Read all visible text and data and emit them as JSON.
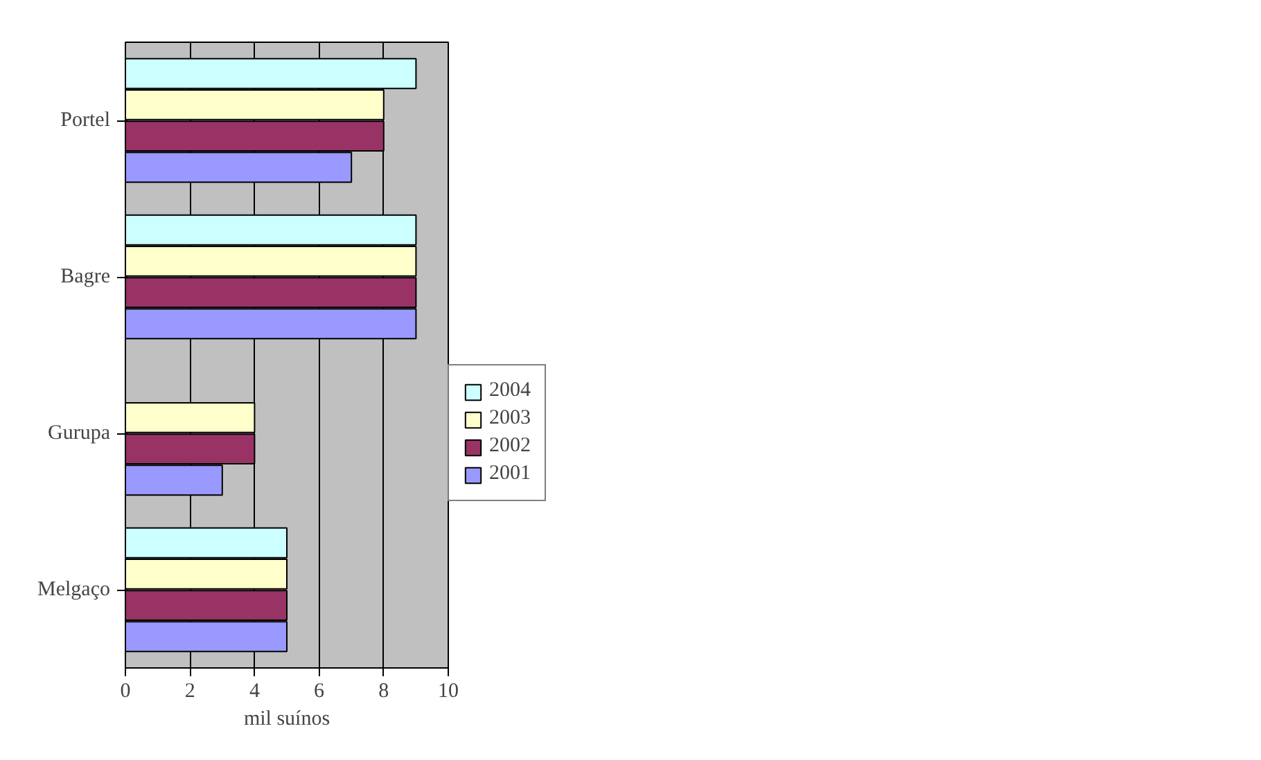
{
  "chart_data": {
    "type": "bar",
    "orientation": "horizontal",
    "xlabel": "mil suínos",
    "categories": [
      "Portel",
      "Bagre",
      "Gurupa",
      "Melgaço"
    ],
    "series": [
      {
        "name": "2004",
        "color": "#ccffff",
        "values": [
          9,
          9,
          null,
          5
        ]
      },
      {
        "name": "2003",
        "color": "#ffffcc",
        "values": [
          8,
          9,
          4,
          5
        ]
      },
      {
        "name": "2002",
        "color": "#993366",
        "values": [
          8,
          9,
          4,
          5
        ]
      },
      {
        "name": "2001",
        "color": "#9999ff",
        "values": [
          7,
          9,
          3,
          5
        ]
      }
    ],
    "xlim": [
      0,
      10
    ],
    "xticks": [
      0,
      2,
      4,
      6,
      8,
      10
    ],
    "grid": "x",
    "legend": "right"
  }
}
